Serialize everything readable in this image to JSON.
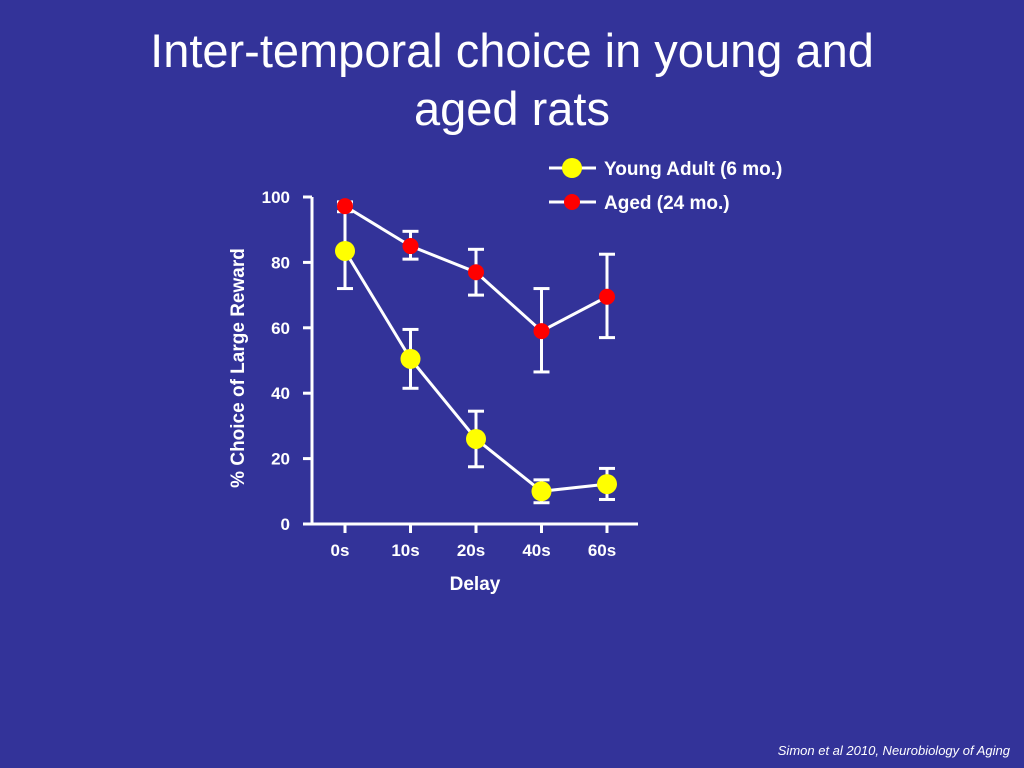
{
  "title_lines": [
    "Inter-temporal choice in young and",
    "aged rats"
  ],
  "citation": "Simon et al 2010, Neurobiology of Aging",
  "chart_data": {
    "type": "line",
    "title": "Inter-temporal choice in young and aged rats",
    "xlabel": "Delay",
    "ylabel": "% Choice of Large Reward",
    "categories": [
      "0s",
      "10s",
      "20s",
      "40s",
      "60s"
    ],
    "ylim": [
      0,
      100
    ],
    "yticks": [
      0,
      20,
      40,
      60,
      80,
      100
    ],
    "grid": false,
    "legend": "top-right",
    "error_bars": true,
    "series": [
      {
        "name": "Young Adult (6 mo.)",
        "color": "#ffff00",
        "values": [
          83.5,
          50.5,
          26,
          10,
          12.2
        ],
        "err_low": [
          72,
          41.5,
          17.5,
          6.5,
          7.5
        ],
        "err_high": [
          97.5,
          59.5,
          34.5,
          13.5,
          17
        ]
      },
      {
        "name": "Aged (24 mo.)",
        "color": "#ff0000",
        "values": [
          97.2,
          85,
          77,
          59,
          69.5
        ],
        "err_low": [
          95.5,
          81,
          70,
          46.5,
          57
        ],
        "err_high": [
          98.5,
          89.5,
          84,
          72,
          82.5
        ]
      }
    ]
  }
}
